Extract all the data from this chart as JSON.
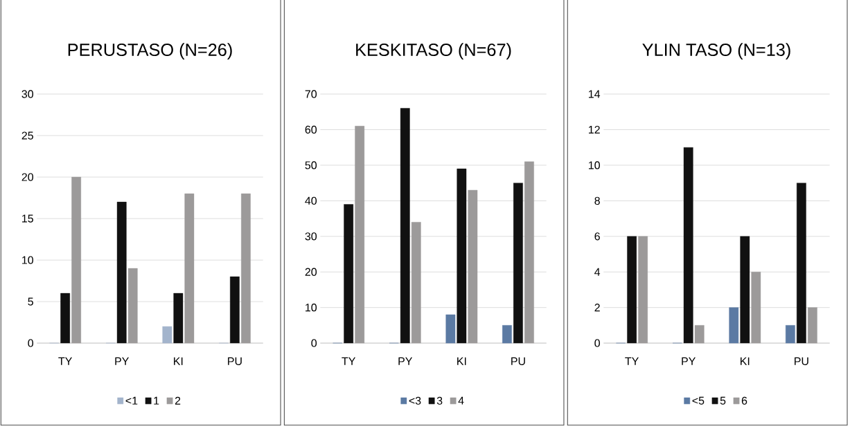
{
  "chart_data": [
    {
      "type": "bar",
      "title": "PERUSTASO (N=26)",
      "categories": [
        "TY",
        "PY",
        "KI",
        "PU"
      ],
      "series": [
        {
          "name": "<1",
          "color": "#a3b4cc",
          "values": [
            0,
            0,
            2,
            0
          ]
        },
        {
          "name": "1",
          "color": "#111111",
          "values": [
            6,
            17,
            6,
            8
          ]
        },
        {
          "name": "2",
          "color": "#9c9a9a",
          "values": [
            20,
            9,
            18,
            18
          ]
        }
      ],
      "ylim": [
        0,
        30
      ],
      "yticks": [
        0,
        5,
        10,
        15,
        20,
        25,
        30
      ],
      "grid": "y",
      "legend": "bottom"
    },
    {
      "type": "bar",
      "title": "KESKITASO (N=67)",
      "categories": [
        "TY",
        "PY",
        "KI",
        "PU"
      ],
      "series": [
        {
          "name": "<3",
          "color": "#5b7aa3",
          "values": [
            0,
            0,
            8,
            5
          ]
        },
        {
          "name": "3",
          "color": "#111111",
          "values": [
            39,
            66,
            49,
            45
          ]
        },
        {
          "name": "4",
          "color": "#9c9a9a",
          "values": [
            61,
            34,
            43,
            51
          ]
        }
      ],
      "ylim": [
        0,
        70
      ],
      "yticks": [
        0,
        10,
        20,
        30,
        40,
        50,
        60,
        70
      ],
      "grid": "y",
      "legend": "bottom"
    },
    {
      "type": "bar",
      "title": "YLIN TASO (N=13)",
      "categories": [
        "TY",
        "PY",
        "KI",
        "PU"
      ],
      "series": [
        {
          "name": "<5",
          "color": "#5b7aa3",
          "values": [
            0,
            0,
            2,
            1
          ]
        },
        {
          "name": "5",
          "color": "#111111",
          "values": [
            6,
            11,
            6,
            9
          ]
        },
        {
          "name": "6",
          "color": "#9c9a9a",
          "values": [
            6,
            1,
            4,
            2
          ]
        }
      ],
      "ylim": [
        0,
        14
      ],
      "yticks": [
        0,
        2,
        4,
        6,
        8,
        10,
        12,
        14
      ],
      "grid": "y",
      "legend": "bottom"
    }
  ]
}
